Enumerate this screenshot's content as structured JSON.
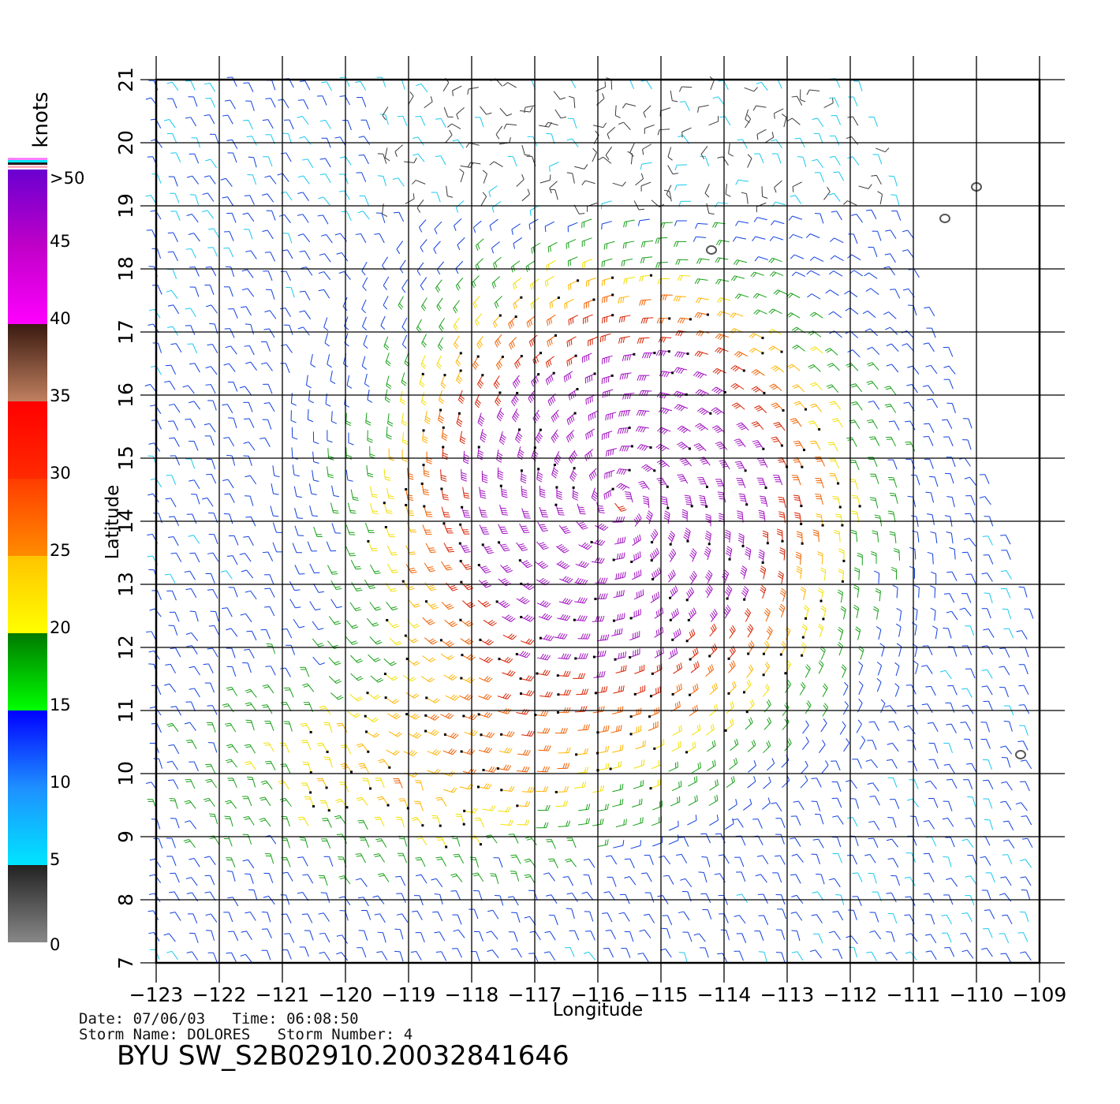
{
  "chart_data": {
    "type": "scatter",
    "subtype": "wind-barb-field",
    "xlabel": "Longitude",
    "ylabel": "Latitude",
    "xlim": [
      -123,
      -108.5
    ],
    "ylim": [
      7,
      21
    ],
    "x_ticks": [
      "−123",
      "−122",
      "−121",
      "−120",
      "−119",
      "−118",
      "−117",
      "−116",
      "−115",
      "−114",
      "−113",
      "−112",
      "−111",
      "−110",
      "−109"
    ],
    "y_ticks": [
      "7",
      "8",
      "9",
      "10",
      "11",
      "12",
      "13",
      "14",
      "15",
      "16",
      "17",
      "18",
      "19",
      "20",
      "21"
    ],
    "grid": true,
    "storm_center": {
      "lon": -115.7,
      "lat": 14.3
    },
    "legend": {
      "unit": "knots",
      "position": "left",
      "labels": [
        "0",
        "5",
        "10",
        "15",
        "20",
        "25",
        "30",
        "35",
        "40",
        "45",
        ">50"
      ],
      "bands": [
        {
          "from": 0,
          "to": 5,
          "colors": [
            "#888888",
            "#222222"
          ]
        },
        {
          "from": 5,
          "to": 10,
          "colors": [
            "#00e5ff",
            "#1e90ff"
          ]
        },
        {
          "from": 10,
          "to": 15,
          "colors": [
            "#1e90ff",
            "#0000ff"
          ]
        },
        {
          "from": 15,
          "to": 20,
          "colors": [
            "#00ff00",
            "#007a00"
          ]
        },
        {
          "from": 20,
          "to": 25,
          "colors": [
            "#ffff00",
            "#ffc400"
          ]
        },
        {
          "from": 25,
          "to": 30,
          "colors": [
            "#ff8c00",
            "#ff3c00"
          ]
        },
        {
          "from": 30,
          "to": 35,
          "colors": [
            "#ff2a00",
            "#ff0000"
          ]
        },
        {
          "from": 35,
          "to": 40,
          "colors": [
            "#c08060",
            "#3a1a10"
          ]
        },
        {
          "from": 40,
          "to": 45,
          "colors": [
            "#ff00ff",
            "#c000c8"
          ]
        },
        {
          "from": 45,
          "to": 50,
          "colors": [
            "#c000c8",
            "#6a00d0"
          ]
        }
      ]
    },
    "islands": [
      {
        "lon": -110.0,
        "lat": 19.3
      },
      {
        "lon": -110.5,
        "lat": 18.8
      },
      {
        "lon": -114.2,
        "lat": 18.3
      },
      {
        "lon": -109.3,
        "lat": 10.3
      }
    ]
  },
  "info": {
    "date_line": "Date: 07/06/03   Time: 06:08:50",
    "storm_line": "Storm Name: DOLORES   Storm Number: 4",
    "file_id": "BYU SW_S2B02910.20032841646"
  }
}
